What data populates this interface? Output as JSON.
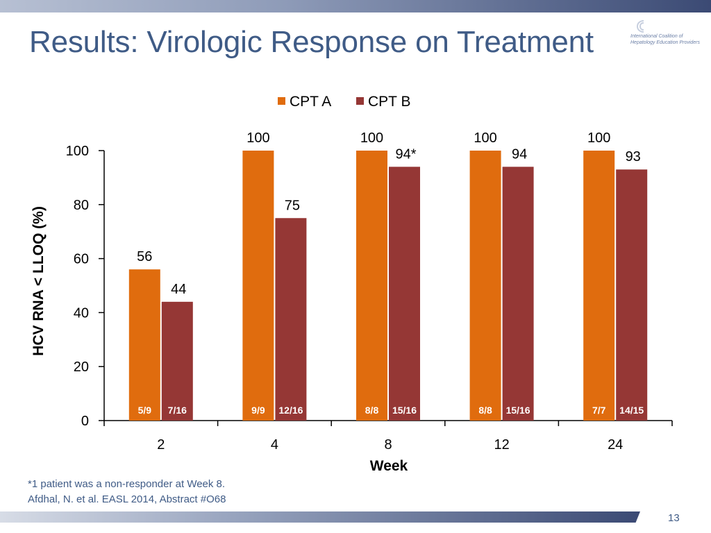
{
  "slide": {
    "title": "Results: Virologic Response on Treatment",
    "logo_text": "International Coalition of Hepatology Education Providers",
    "footnote": "*1 patient was a non-responder at Week 8.",
    "citation": "Afdhal, N. et al. EASL 2014, Abstract #O68",
    "page_number": "13"
  },
  "colors": {
    "cpt_a": "#e06c0e",
    "cpt_b": "#953735",
    "title": "#3f5b86"
  },
  "chart_data": {
    "type": "bar",
    "categories": [
      "2",
      "4",
      "8",
      "12",
      "24"
    ],
    "series": [
      {
        "name": "CPT A",
        "values": [
          56,
          100,
          100,
          100,
          100
        ],
        "labels": [
          "56",
          "100",
          "100",
          "100",
          "100"
        ],
        "counts": [
          "5/9",
          "9/9",
          "8/8",
          "8/8",
          "7/7"
        ]
      },
      {
        "name": "CPT B",
        "values": [
          44,
          75,
          94,
          94,
          93
        ],
        "labels": [
          "44",
          "75",
          "94*",
          "94",
          "93"
        ],
        "counts": [
          "7/16",
          "12/16",
          "15/16",
          "15/16",
          "14/15"
        ]
      }
    ],
    "title": "",
    "xlabel": "Week",
    "ylabel": "HCV RNA < LLOQ (%)",
    "ylim": [
      0,
      100
    ],
    "yticks": [
      0,
      20,
      40,
      60,
      80,
      100
    ],
    "grid": false,
    "legend_position": "top-center"
  }
}
